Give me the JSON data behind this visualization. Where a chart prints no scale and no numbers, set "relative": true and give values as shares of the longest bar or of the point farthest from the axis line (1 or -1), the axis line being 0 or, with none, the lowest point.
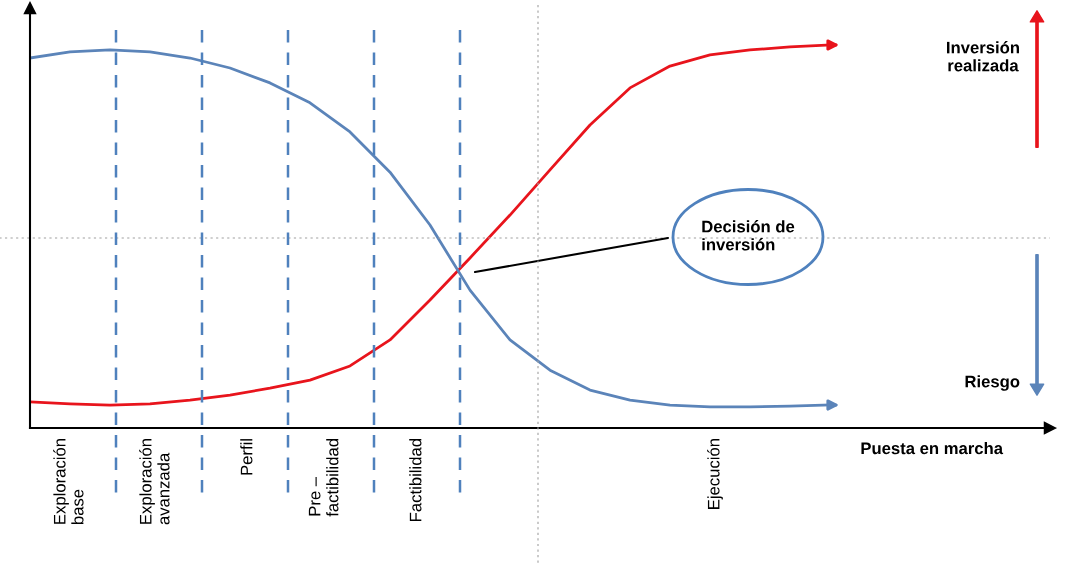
{
  "chart_data": {
    "type": "line",
    "relative": true,
    "xlabel": "Puesta en marcha",
    "categories": [
      null,
      null,
      null,
      null,
      null,
      null,
      null,
      null,
      null,
      null,
      null,
      null,
      null,
      null,
      null,
      null,
      null,
      null,
      null,
      null,
      null
    ],
    "series": [
      {
        "name": "Inversión realizada",
        "color": "#e8141c",
        "values": [
          0.068,
          0.063,
          0.06,
          0.063,
          0.073,
          0.086,
          0.104,
          0.125,
          0.162,
          0.23,
          0.334,
          0.444,
          0.556,
          0.674,
          0.791,
          0.888,
          0.945,
          0.974,
          0.987,
          0.995,
          1
        ]
      },
      {
        "name": "Riesgo",
        "color": "#5b84b9",
        "values": [
          0.966,
          0.982,
          0.987,
          0.982,
          0.966,
          0.94,
          0.901,
          0.849,
          0.773,
          0.668,
          0.53,
          0.36,
          0.23,
          0.151,
          0.099,
          0.073,
          0.06,
          0.055,
          0.055,
          0.057,
          0.06
        ]
      }
    ],
    "ref_lines": [
      {
        "axis": "y",
        "value": 0.496,
        "color": "#a0a0a0",
        "line_style": "dotted"
      }
    ],
    "annotations": [
      "Exploración base",
      "Exploración avanzada",
      "Perfil",
      "Pre – factibilidad",
      "Factibilidad",
      "Ejecución",
      "Decisión de inversión"
    ],
    "marker": "none",
    "line_style": "solid"
  }
}
